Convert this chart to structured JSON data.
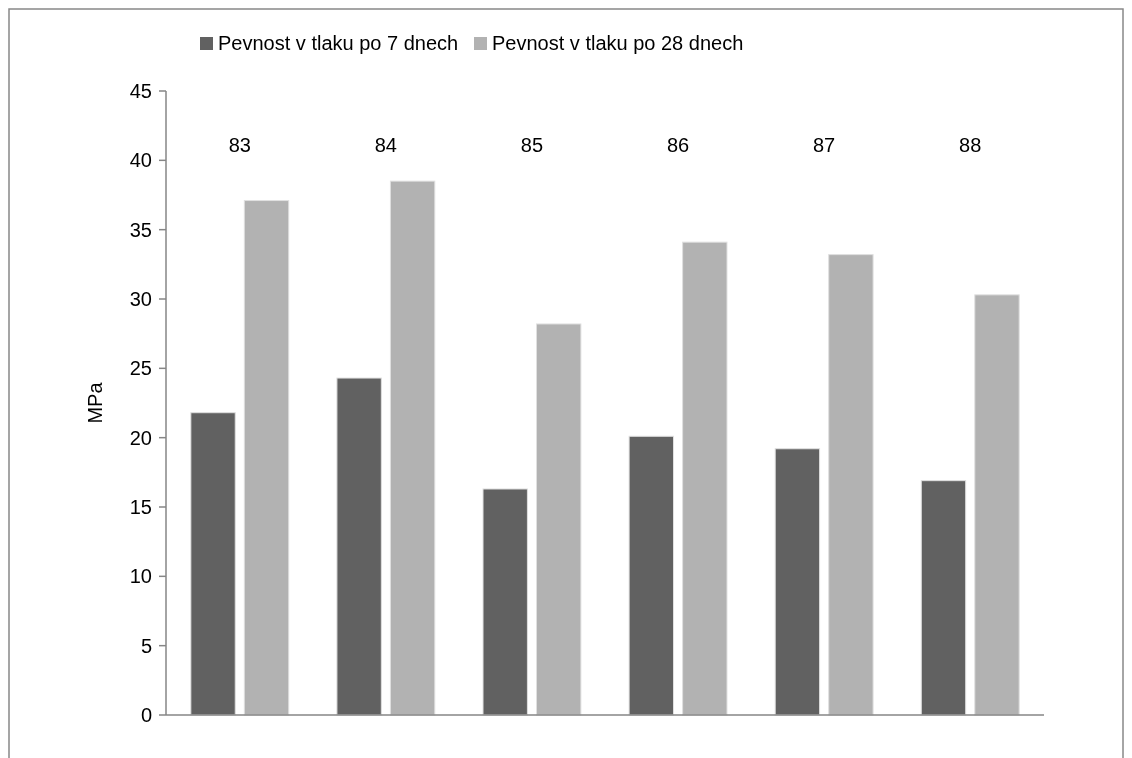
{
  "chart_data": {
    "type": "bar",
    "ylabel": "MPa",
    "categories": [
      "83",
      "84",
      "85",
      "86",
      "87",
      "88"
    ],
    "series": [
      {
        "name": "Pevnost v tlaku po 7 dnech",
        "color": "#616161",
        "values": [
          21.8,
          24.3,
          16.3,
          20.1,
          19.2,
          16.9
        ]
      },
      {
        "name": "Pevnost v tlaku po 28 dnech",
        "color": "#b2b2b2",
        "values": [
          37.1,
          38.5,
          28.2,
          34.1,
          33.2,
          30.3
        ]
      }
    ],
    "ylim": [
      0,
      45
    ],
    "yticks": [
      0,
      5,
      10,
      15,
      20,
      25,
      30,
      35,
      40,
      45
    ],
    "grid": false,
    "legend": "top"
  }
}
